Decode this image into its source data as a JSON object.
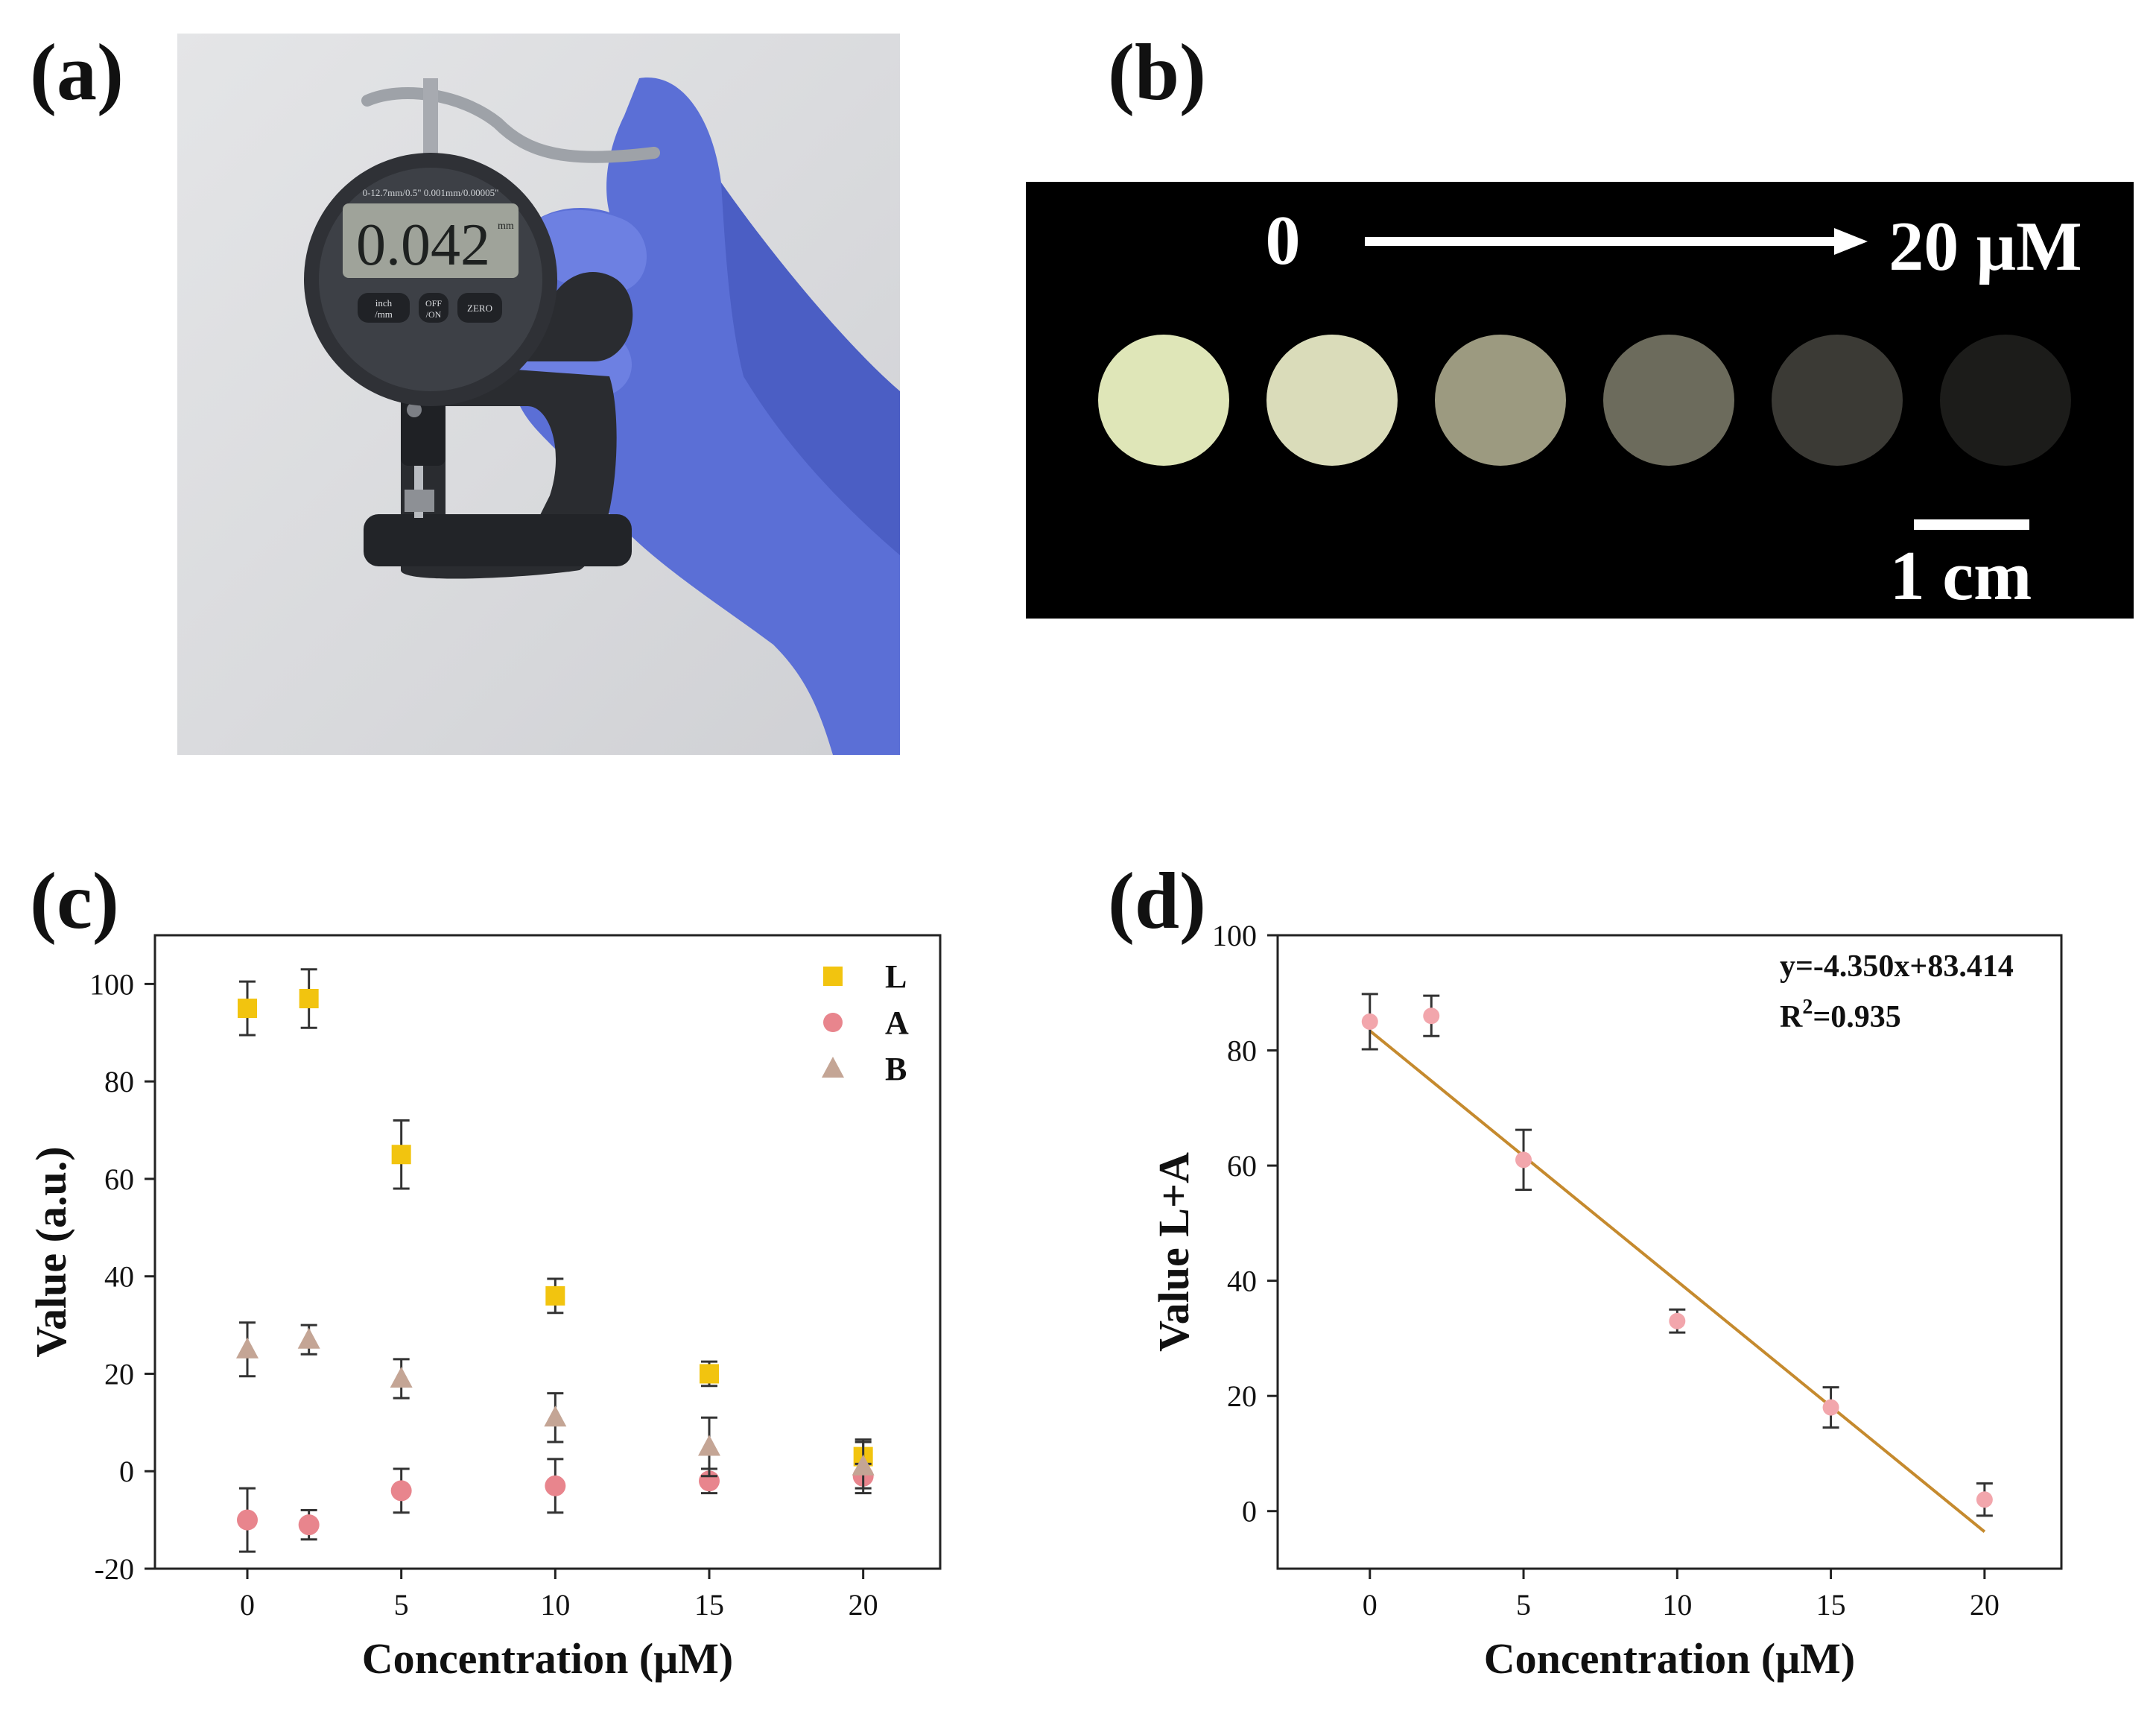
{
  "panel_labels": {
    "a": "(a)",
    "b": "(b)",
    "c": "(c)",
    "d": "(d)"
  },
  "photo_a": {
    "display_reading": "0.042",
    "display_unit": "mm",
    "dial_spec": "0-12.7mm/0.5\"  0.001mm/0.00005\"",
    "buttons": [
      "inch\n/mm",
      "OFF\n/ON",
      "ZERO"
    ],
    "colors": {
      "glove": "#5b6fd6",
      "gauge": "#2a2c30",
      "background": "#dcdde0"
    }
  },
  "photo_b": {
    "arrow_start_label": "0",
    "arrow_end_label": "20 μM",
    "scale_bar_label": "1 cm",
    "spot_colors": [
      "#dfe6b8",
      "#dadcba",
      "#9c9a80",
      "#6c6b5c",
      "#3b3a35",
      "#1c1c1a"
    ]
  },
  "chart_data": [
    {
      "type": "scatter",
      "panel": "c",
      "xlabel": "Concentration (μM)",
      "ylabel": "Value (a.u.)",
      "xlim": [
        -3,
        22.5
      ],
      "ylim": [
        -20,
        110
      ],
      "xticks": [
        0,
        5,
        10,
        15,
        20
      ],
      "yticks": [
        -20,
        0,
        20,
        40,
        60,
        80,
        100
      ],
      "legend_position": "top-right",
      "series": [
        {
          "name": "L",
          "marker": "square",
          "color": "#f2c40f",
          "x": [
            0,
            2,
            5,
            10,
            15,
            20
          ],
          "y": [
            95,
            97,
            65,
            36,
            20,
            3
          ],
          "err": [
            5.5,
            6,
            7,
            3.5,
            2.5,
            3
          ]
        },
        {
          "name": "A",
          "marker": "circle",
          "color": "#e8858d",
          "x": [
            0,
            2,
            5,
            10,
            15,
            20
          ],
          "y": [
            -10,
            -11,
            -4,
            -3,
            -2,
            -1
          ],
          "err": [
            6.5,
            3,
            4.5,
            5.5,
            2.5,
            2.5
          ]
        },
        {
          "name": "B",
          "marker": "triangle",
          "color": "#c4a595",
          "x": [
            0,
            2,
            5,
            10,
            15,
            20
          ],
          "y": [
            25,
            27,
            19,
            11,
            5,
            1
          ],
          "err": [
            5.5,
            3,
            4,
            5,
            6,
            5.5
          ]
        }
      ]
    },
    {
      "type": "scatter",
      "panel": "d",
      "xlabel": "Concentration (μM)",
      "ylabel": "Value L+A",
      "xlim": [
        -3,
        22.5
      ],
      "ylim": [
        -10,
        100
      ],
      "xticks": [
        0,
        5,
        10,
        15,
        20
      ],
      "yticks": [
        0,
        20,
        40,
        60,
        80,
        100
      ],
      "series": [
        {
          "marker": "circle",
          "color": "#f2a6ac",
          "x": [
            0,
            2,
            5,
            10,
            15,
            20
          ],
          "y": [
            85,
            86,
            61,
            33,
            18,
            2
          ],
          "err": [
            4.8,
            3.5,
            5.2,
            2,
            3.5,
            2.8
          ]
        }
      ],
      "fit": {
        "slope": -4.35,
        "intercept": 83.414,
        "x_range": [
          0,
          20
        ],
        "color": "#c58a2e"
      },
      "annotation": {
        "equation": "y=-4.350x+83.414",
        "r2_prefix": "R",
        "r2_sup": "2",
        "r2_value": "=0.935"
      }
    }
  ]
}
